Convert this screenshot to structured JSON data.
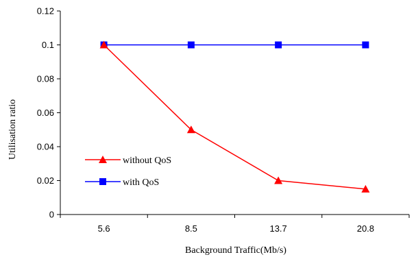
{
  "chart_data": {
    "type": "line",
    "categories": [
      "5.6",
      "8.5",
      "13.7",
      "20.8"
    ],
    "series": [
      {
        "name": "without QoS",
        "values": [
          0.1,
          0.05,
          0.02,
          0.015
        ],
        "color": "#ff0000",
        "marker": "triangle"
      },
      {
        "name": "with QoS",
        "values": [
          0.1,
          0.1,
          0.1,
          0.1
        ],
        "color": "#0000ff",
        "marker": "square"
      }
    ],
    "xlabel": "Background Traffic(Mb/s)",
    "ylabel": "Utilisation ratio",
    "ylim": [
      0,
      0.12
    ],
    "yticks": [
      "0",
      "0.02",
      "0.04",
      "0.06",
      "0.08",
      "0.1",
      "0.12"
    ],
    "grid": false,
    "legend_position": "lower-left"
  }
}
